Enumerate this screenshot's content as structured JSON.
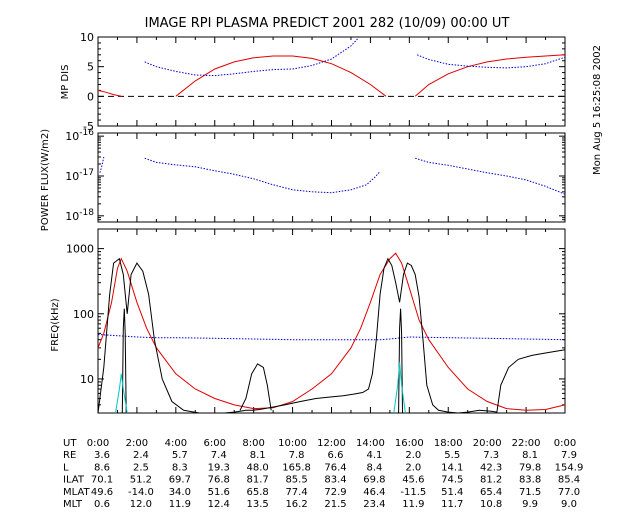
{
  "title": "IMAGE  RPI PLASMA PREDICT 2001 282 (10/09) 00:00 UT",
  "side_label": "Mon Aug  5 16:25:08 2002",
  "colors": {
    "blue": "#0000cc",
    "red": "#e00000",
    "black": "#000000",
    "cyan": "#00c8c8"
  },
  "chart_data": [
    {
      "type": "line",
      "panel": "mp_dis",
      "ylabel": "MP DIS",
      "ylim": [
        -5,
        10
      ],
      "xlim": [
        0,
        24
      ],
      "yticks": [
        -5,
        0,
        5,
        10
      ],
      "reference_line": 0,
      "series": [
        {
          "color": "red",
          "x": [
            0,
            0.4,
            0.8,
            1.2
          ],
          "y": [
            1.0,
            0.7,
            0.3,
            0.0
          ]
        },
        {
          "color": "red",
          "x": [
            4.0,
            5,
            6,
            7,
            8,
            9,
            10,
            11,
            12,
            13,
            14,
            14.8
          ],
          "y": [
            0.0,
            2.6,
            4.6,
            5.8,
            6.5,
            6.8,
            6.8,
            6.4,
            5.5,
            4.0,
            2.0,
            0.0
          ]
        },
        {
          "color": "red",
          "x": [
            16.3,
            17,
            18,
            19,
            20,
            21,
            22,
            23,
            24
          ],
          "y": [
            0.0,
            2.0,
            3.8,
            5.0,
            5.8,
            6.3,
            6.6,
            6.8,
            7.0
          ]
        },
        {
          "color": "blue",
          "x": [
            2.4,
            3,
            4,
            5,
            6,
            7,
            8,
            9,
            10,
            11,
            12,
            13,
            13.4
          ],
          "y": [
            5.8,
            5.0,
            4.2,
            3.6,
            3.5,
            3.8,
            4.2,
            4.5,
            4.6,
            5.2,
            6.3,
            8.5,
            9.9
          ]
        },
        {
          "color": "blue",
          "x": [
            16.4,
            17,
            18,
            19,
            20,
            21,
            22,
            23,
            24
          ],
          "y": [
            7.0,
            6.2,
            5.4,
            5.1,
            4.9,
            4.8,
            5.0,
            5.5,
            6.6
          ]
        }
      ]
    },
    {
      "type": "line",
      "panel": "power_flux",
      "ylabel": "POWER FLUX(W/m2)",
      "scale": "log",
      "ylim": [
        7e-19,
        1.2e-16
      ],
      "xlim": [
        0,
        24
      ],
      "yticks": [
        "10^-16",
        "10^-17",
        "10^-18"
      ],
      "series": [
        {
          "color": "blue",
          "x": [
            0.1,
            0.2,
            0.3
          ],
          "y": [
            1.2e-17,
            1.8e-17,
            3e-17
          ]
        },
        {
          "color": "blue",
          "x": [
            2.4,
            3,
            4,
            5,
            6,
            7,
            8,
            9,
            10,
            11,
            12,
            13,
            13.8,
            14.2,
            14.5
          ],
          "y": [
            2.8e-17,
            2.2e-17,
            1.9e-17,
            1.7e-17,
            1.35e-17,
            1.1e-17,
            8.5e-18,
            6e-18,
            4.5e-18,
            4e-18,
            3.8e-18,
            4.5e-18,
            6e-18,
            9e-18,
            1.3e-17
          ]
        },
        {
          "color": "blue",
          "x": [
            16.3,
            17,
            18,
            19,
            20,
            21,
            22,
            23,
            24
          ],
          "y": [
            2.8e-17,
            2.2e-17,
            1.85e-17,
            1.5e-17,
            1.2e-17,
            1e-17,
            8e-18,
            5.5e-18,
            3.5e-18
          ]
        }
      ]
    },
    {
      "type": "line",
      "panel": "freq",
      "ylabel": "FREQ(kHz)",
      "scale": "log",
      "ylim": [
        3,
        2000
      ],
      "xlim": [
        0,
        24
      ],
      "yticks": [
        10,
        100,
        1000
      ],
      "series": [
        {
          "color": "blue",
          "x": [
            0,
            1,
            2,
            3,
            4,
            6,
            8,
            10,
            12,
            14,
            14.5,
            15,
            16,
            18,
            20,
            22,
            24
          ],
          "y": [
            48,
            46,
            44,
            43,
            43,
            42,
            41,
            40,
            40,
            40,
            40,
            41,
            44,
            43,
            42,
            41,
            40
          ]
        },
        {
          "color": "red",
          "x": [
            0,
            0.3,
            0.7,
            1.0,
            1.2,
            1.5,
            2.0,
            2.5,
            3,
            4,
            5,
            6,
            7,
            8,
            9,
            10,
            11,
            12,
            13,
            13.5,
            14,
            14.5,
            15,
            15.3,
            15.6,
            16,
            16.5,
            17,
            18,
            19,
            20,
            21,
            22,
            23,
            24
          ],
          "y": [
            30,
            50,
            150,
            500,
            700,
            450,
            150,
            60,
            30,
            12,
            7,
            5,
            4,
            3.5,
            3.6,
            4.5,
            7,
            12,
            30,
            60,
            150,
            400,
            700,
            850,
            600,
            250,
            80,
            40,
            15,
            7,
            4.5,
            3.5,
            3.3,
            3.4,
            4
          ]
        },
        {
          "color": "black",
          "x": [
            0,
            0.3,
            0.6,
            0.8,
            1.1,
            1.3,
            1.5,
            1.7,
            2.0,
            2.3,
            2.6,
            2.9,
            3.3,
            3.8,
            4.4,
            5.2,
            6.0,
            6.5,
            7.0,
            7.3,
            7.6,
            7.9,
            8.3,
            8.8,
            9.6,
            10.4,
            11.2,
            12.0,
            12.6,
            13.1,
            13.6,
            13.9,
            14.1,
            14.3,
            14.5,
            14.7,
            14.9,
            15.1,
            15.3,
            15.5,
            15.7,
            15.9,
            16.1,
            16.3,
            16.5,
            16.7,
            16.9,
            17.2,
            17.5,
            18.0,
            18.5,
            19.0,
            19.6,
            20.2,
            20.5,
            20.7,
            21.1,
            21.6,
            22.3,
            23.0,
            24.0
          ],
          "y": [
            3,
            15,
            200,
            600,
            700,
            400,
            100,
            400,
            600,
            450,
            200,
            40,
            10,
            4.5,
            3.3,
            3,
            3,
            3,
            3.1,
            3.2,
            3.3,
            3.3,
            3.4,
            3.6,
            4.0,
            4.5,
            5.0,
            5.3,
            5.5,
            5.8,
            6.2,
            7,
            12,
            40,
            200,
            500,
            700,
            550,
            300,
            150,
            400,
            600,
            550,
            400,
            180,
            40,
            8,
            4,
            3.3,
            3.1,
            3,
            3.1,
            3.3,
            3.2,
            3.1,
            8,
            15,
            20,
            23,
            25,
            28
          ]
        },
        {
          "color": "black",
          "x": [
            7.3,
            7.6,
            7.9,
            8.2,
            8.5,
            8.7,
            8.9
          ],
          "y": [
            3.3,
            5,
            12,
            17,
            15,
            8,
            3.3
          ]
        },
        {
          "color": "black",
          "x": [
            1.25,
            1.3,
            1.35,
            1.4,
            1.45
          ],
          "y": [
            3,
            60,
            120,
            50,
            3
          ]
        },
        {
          "color": "black",
          "x": [
            15.45,
            15.5,
            15.55,
            15.6,
            15.65
          ],
          "y": [
            3,
            60,
            120,
            50,
            3
          ]
        },
        {
          "color": "cyan",
          "x": [
            0.9,
            1.1,
            1.2,
            1.3,
            1.5
          ],
          "y": [
            3,
            7,
            12,
            7,
            3
          ]
        },
        {
          "color": "cyan",
          "x": [
            15.2,
            15.4,
            15.5,
            15.6,
            15.8
          ],
          "y": [
            3,
            8,
            18,
            8,
            3
          ]
        }
      ]
    },
    {
      "type": "table",
      "panel": "orbit_table",
      "header_label": "UT",
      "columns": [
        "0:00",
        "2:00",
        "4:00",
        "6:00",
        "8:00",
        "10:00",
        "12:00",
        "14:00",
        "16:00",
        "18:00",
        "20:00",
        "22:00",
        "0:00"
      ],
      "rows": [
        {
          "label": "RE",
          "values": [
            "3.6",
            "2.4",
            "5.7",
            "7.4",
            "8.1",
            "7.8",
            "6.6",
            "4.1",
            "2.0",
            "5.5",
            "7.3",
            "8.1",
            "7.9"
          ]
        },
        {
          "label": "L",
          "values": [
            "8.6",
            "2.5",
            "8.3",
            "19.3",
            "48.0",
            "165.8",
            "76.4",
            "8.4",
            "2.0",
            "14.1",
            "42.3",
            "79.8",
            "154.9"
          ]
        },
        {
          "label": "ILAT",
          "values": [
            "70.1",
            "51.2",
            "69.7",
            "76.8",
            "81.7",
            "85.5",
            "83.4",
            "69.8",
            "45.6",
            "74.5",
            "81.2",
            "83.8",
            "85.4"
          ]
        },
        {
          "label": "MLAT",
          "values": [
            "49.6",
            "-14.0",
            "34.0",
            "51.6",
            "65.8",
            "77.4",
            "72.9",
            "46.4",
            "-11.5",
            "51.4",
            "65.4",
            "71.5",
            "77.0"
          ]
        },
        {
          "label": "MLT",
          "values": [
            "0.6",
            "12.0",
            "11.9",
            "12.4",
            "13.5",
            "16.2",
            "21.5",
            "23.4",
            "11.9",
            "11.7",
            "10.8",
            "9.9",
            "9.0"
          ]
        }
      ]
    }
  ]
}
